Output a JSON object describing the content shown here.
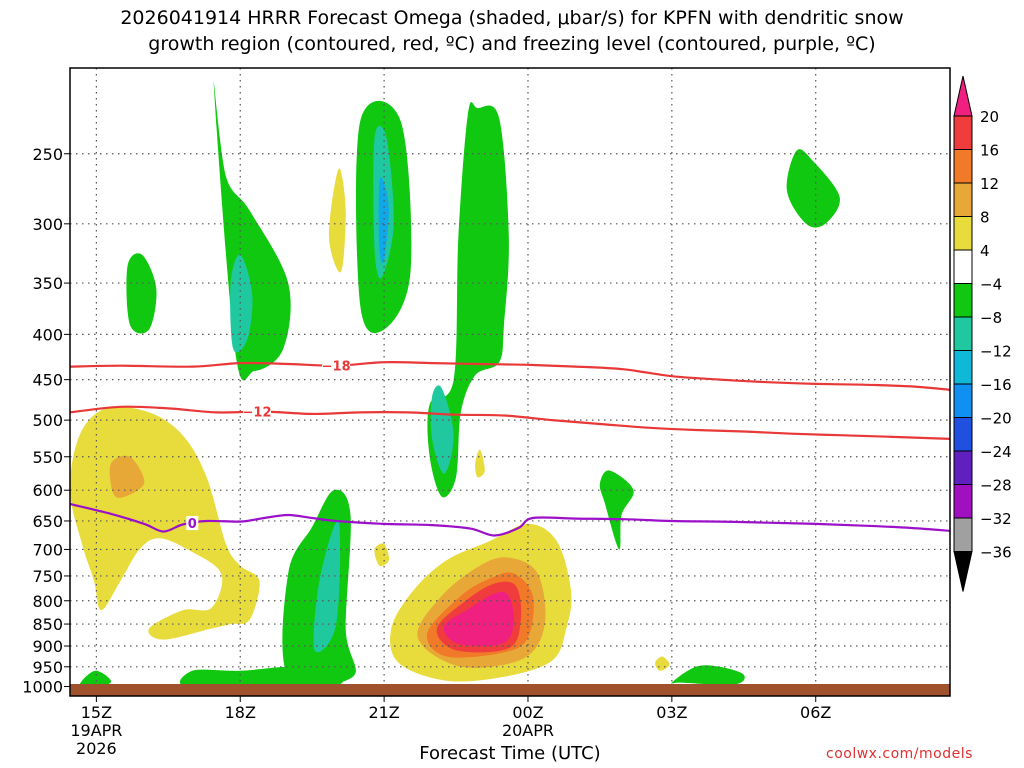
{
  "title_line1": "2026041914 HRRR Forecast Omega (shaded, μbar/s) for KPFN with dendritic snow",
  "title_line2": "growth region (contoured, red, ºC) and freezing level (contoured, purple, ºC)",
  "credit": "coolwx.com/models",
  "chart_data": {
    "type": "heatmap",
    "xlabel": "Forecast Time (UTC)",
    "ylabel": "",
    "x_hours_range": [
      14.45,
      32.8
    ],
    "ylim_hpa": [
      1025,
      200
    ],
    "y_scale": "log-pressure",
    "grid": "dotted",
    "x_ticks": [
      {
        "h": 15,
        "label": "15Z",
        "date": "19APR",
        "year": "2026"
      },
      {
        "h": 18,
        "label": "18Z"
      },
      {
        "h": 21,
        "label": "21Z"
      },
      {
        "h": 24,
        "label": "00Z",
        "date": "20APR"
      },
      {
        "h": 27,
        "label": "03Z"
      },
      {
        "h": 30,
        "label": "06Z"
      }
    ],
    "y_ticks": [
      250,
      300,
      350,
      400,
      450,
      500,
      550,
      600,
      650,
      700,
      750,
      800,
      850,
      900,
      950,
      1000
    ],
    "colorbar": {
      "labels": [
        "20",
        "16",
        "12",
        "8",
        "4",
        "-4",
        "-8",
        "-12",
        "-16",
        "-20",
        "-24",
        "-28",
        "-32",
        "-36"
      ],
      "colors": [
        "#f02080",
        "#f03c3c",
        "#f07a28",
        "#e8a838",
        "#e8dc3c",
        "#ffffff",
        "#10c810",
        "#20c8a0",
        "#10b8d8",
        "#1090f0",
        "#2050e0",
        "#6020c0",
        "#a010c0",
        "#a0a0a0",
        "#000000"
      ]
    },
    "series": [
      {
        "name": "-18",
        "color": "#e83838",
        "points": [
          [
            14.45,
            435
          ],
          [
            15.5,
            434
          ],
          [
            17,
            435
          ],
          [
            18,
            431
          ],
          [
            19,
            432
          ],
          [
            20,
            434
          ],
          [
            21,
            430
          ],
          [
            22,
            431
          ],
          [
            23,
            432
          ],
          [
            24,
            433
          ],
          [
            25,
            435
          ],
          [
            26,
            438
          ],
          [
            27,
            446
          ],
          [
            28,
            450
          ],
          [
            29,
            453
          ],
          [
            30,
            455
          ],
          [
            31,
            456
          ],
          [
            32,
            458
          ],
          [
            32.8,
            462
          ]
        ]
      },
      {
        "name": "-12",
        "color": "#e83838",
        "points": [
          [
            14.45,
            490
          ],
          [
            15.5,
            483
          ],
          [
            16.5,
            485
          ],
          [
            17.5,
            490
          ],
          [
            18.5,
            489
          ],
          [
            19.5,
            492
          ],
          [
            20.5,
            490
          ],
          [
            21.5,
            490
          ],
          [
            22.5,
            493
          ],
          [
            23.5,
            494
          ],
          [
            24.5,
            500
          ],
          [
            25.5,
            505
          ],
          [
            26.5,
            510
          ],
          [
            27.5,
            513
          ],
          [
            28.5,
            515
          ],
          [
            29.5,
            518
          ],
          [
            30.5,
            520
          ],
          [
            31.5,
            522
          ],
          [
            32.8,
            525
          ]
        ]
      },
      {
        "name": "0",
        "color": "#9b10c8",
        "points": [
          [
            14.45,
            622
          ],
          [
            15.3,
            638
          ],
          [
            16,
            655
          ],
          [
            16.4,
            668
          ],
          [
            16.8,
            656
          ],
          [
            17.3,
            650
          ],
          [
            18,
            651
          ],
          [
            18.5,
            645
          ],
          [
            19,
            640
          ],
          [
            19.5,
            645
          ],
          [
            20,
            650
          ],
          [
            21,
            655
          ],
          [
            22,
            657
          ],
          [
            22.8,
            663
          ],
          [
            23.3,
            675
          ],
          [
            23.8,
            662
          ],
          [
            24.1,
            645
          ],
          [
            25,
            646
          ],
          [
            26,
            647
          ],
          [
            27,
            650
          ],
          [
            28,
            651
          ],
          [
            29,
            653
          ],
          [
            30,
            655
          ],
          [
            31,
            658
          ],
          [
            32,
            662
          ],
          [
            32.8,
            667
          ]
        ]
      }
    ],
    "omega_features": [
      {
        "kind": "up",
        "level": -8,
        "points": [
          [
            17.9,
            420
          ],
          [
            17.45,
            210
          ],
          [
            17.7,
            265
          ],
          [
            18.2,
            290
          ],
          [
            19.0,
            350
          ],
          [
            18.9,
            415
          ],
          [
            18.3,
            440
          ]
        ]
      },
      {
        "kind": "up",
        "level": -12,
        "points": [
          [
            17.85,
            415
          ],
          [
            17.8,
            350
          ],
          [
            18.0,
            325
          ],
          [
            18.25,
            360
          ],
          [
            18.15,
            405
          ]
        ]
      },
      {
        "kind": "up",
        "level": -8,
        "points": [
          [
            15.7,
            390
          ],
          [
            15.65,
            335
          ],
          [
            15.95,
            325
          ],
          [
            16.25,
            355
          ],
          [
            16.1,
            395
          ]
        ]
      },
      {
        "kind": "up",
        "level": -8,
        "points": [
          [
            20.5,
            230
          ],
          [
            20.5,
            370
          ],
          [
            21.0,
            395
          ],
          [
            21.55,
            340
          ],
          [
            21.35,
            230
          ]
        ]
      },
      {
        "kind": "up",
        "level": -12,
        "points": [
          [
            20.8,
            240
          ],
          [
            20.8,
            320
          ],
          [
            20.95,
            345
          ],
          [
            21.2,
            300
          ],
          [
            21.05,
            240
          ]
        ]
      },
      {
        "kind": "up",
        "level": -16,
        "points": [
          [
            20.9,
            270
          ],
          [
            20.9,
            320
          ],
          [
            21.0,
            330
          ],
          [
            21.1,
            290
          ],
          [
            21.0,
            270
          ]
        ]
      },
      {
        "kind": "up",
        "level": -8,
        "points": [
          [
            22.45,
            450
          ],
          [
            22.55,
            310
          ],
          [
            22.75,
            225
          ],
          [
            22.95,
            222
          ],
          [
            23.4,
            228
          ],
          [
            23.6,
            310
          ],
          [
            23.5,
            390
          ],
          [
            23.4,
            430
          ],
          [
            22.9,
            445
          ],
          [
            22.6,
            490
          ],
          [
            22.5,
            580
          ],
          [
            22.2,
            610
          ],
          [
            21.95,
            550
          ],
          [
            21.95,
            480
          ]
        ]
      },
      {
        "kind": "up",
        "level": -12,
        "points": [
          [
            22.0,
            470
          ],
          [
            22.2,
            460
          ],
          [
            22.45,
            520
          ],
          [
            22.25,
            575
          ],
          [
            22.0,
            525
          ]
        ]
      },
      {
        "kind": "up",
        "level": -8,
        "points": [
          [
            19.0,
            975
          ],
          [
            19.0,
            745
          ],
          [
            19.5,
            660
          ],
          [
            19.95,
            600
          ],
          [
            20.3,
            640
          ],
          [
            20.2,
            860
          ],
          [
            20.35,
            975
          ]
        ]
      },
      {
        "kind": "up",
        "level": -12,
        "points": [
          [
            19.55,
            910
          ],
          [
            19.65,
            760
          ],
          [
            20.05,
            650
          ],
          [
            20.0,
            850
          ]
        ]
      },
      {
        "kind": "up",
        "level": -8,
        "points": [
          [
            29.4,
            275
          ],
          [
            29.6,
            248
          ],
          [
            29.95,
            255
          ],
          [
            30.5,
            280
          ],
          [
            30.2,
            300
          ],
          [
            29.8,
            300
          ]
        ]
      },
      {
        "kind": "up",
        "level": -8,
        "points": [
          [
            25.5,
            590
          ],
          [
            25.7,
            570
          ],
          [
            26.2,
            600
          ],
          [
            25.95,
            640
          ],
          [
            25.9,
            700
          ],
          [
            25.6,
            620
          ]
        ]
      },
      {
        "kind": "up",
        "level": -8,
        "points": [
          [
            17.0,
            960
          ],
          [
            18.0,
            960
          ],
          [
            19.0,
            950
          ],
          [
            19.9,
            955
          ],
          [
            19.9,
            1000
          ],
          [
            17.0,
            1005
          ]
        ]
      },
      {
        "kind": "up",
        "level": -8,
        "points": [
          [
            14.7,
            985
          ],
          [
            15.0,
            960
          ],
          [
            15.3,
            990
          ],
          [
            14.7,
            1005
          ]
        ]
      },
      {
        "kind": "up",
        "level": -8,
        "points": [
          [
            27.0,
            990
          ],
          [
            27.5,
            950
          ],
          [
            28.0,
            950
          ],
          [
            28.5,
            970
          ],
          [
            28.3,
            995
          ],
          [
            27.2,
            990
          ]
        ]
      },
      {
        "kind": "down",
        "level": 4,
        "points": [
          [
            14.45,
            600
          ],
          [
            14.65,
            520
          ],
          [
            15.2,
            485
          ],
          [
            16.1,
            490
          ],
          [
            16.8,
            520
          ],
          [
            17.3,
            580
          ],
          [
            17.7,
            690
          ],
          [
            18.0,
            730
          ],
          [
            18.4,
            760
          ],
          [
            18.2,
            840
          ],
          [
            17.8,
            850
          ],
          [
            17.4,
            860
          ],
          [
            16.4,
            885
          ],
          [
            16.1,
            860
          ],
          [
            16.8,
            820
          ],
          [
            17.4,
            815
          ],
          [
            17.6,
            745
          ],
          [
            16.9,
            700
          ],
          [
            16.3,
            680
          ],
          [
            15.9,
            700
          ],
          [
            15.5,
            760
          ],
          [
            15.1,
            820
          ],
          [
            14.95,
            760
          ],
          [
            14.7,
            690
          ]
        ]
      },
      {
        "kind": "down",
        "level": 8,
        "points": [
          [
            15.3,
            560
          ],
          [
            15.7,
            550
          ],
          [
            16.0,
            588
          ],
          [
            15.6,
            610
          ],
          [
            15.35,
            605
          ]
        ]
      },
      {
        "kind": "down",
        "level": 4,
        "points": [
          [
            19.85,
            310
          ],
          [
            20.05,
            260
          ],
          [
            20.2,
            290
          ],
          [
            20.1,
            340
          ]
        ]
      },
      {
        "kind": "down",
        "level": 4,
        "points": [
          [
            21.3,
            940
          ],
          [
            21.15,
            860
          ],
          [
            21.6,
            780
          ],
          [
            22.3,
            720
          ],
          [
            23.2,
            685
          ],
          [
            24.0,
            655
          ],
          [
            24.6,
            685
          ],
          [
            24.9,
            780
          ],
          [
            24.8,
            860
          ],
          [
            24.5,
            935
          ],
          [
            23.5,
            975
          ],
          [
            22.3,
            985
          ]
        ]
      },
      {
        "kind": "down",
        "level": 8,
        "points": [
          [
            21.7,
            880
          ],
          [
            22.2,
            790
          ],
          [
            23.0,
            730
          ],
          [
            23.6,
            715
          ],
          [
            24.2,
            745
          ],
          [
            24.35,
            850
          ],
          [
            23.9,
            930
          ],
          [
            22.6,
            950
          ]
        ]
      },
      {
        "kind": "down",
        "level": 12,
        "points": [
          [
            21.9,
            870
          ],
          [
            22.6,
            790
          ],
          [
            23.2,
            755
          ],
          [
            23.7,
            745
          ],
          [
            24.1,
            790
          ],
          [
            24.0,
            880
          ],
          [
            23.5,
            915
          ],
          [
            22.3,
            925
          ]
        ]
      },
      {
        "kind": "down",
        "level": 16,
        "points": [
          [
            22.1,
            860
          ],
          [
            22.7,
            800
          ],
          [
            23.3,
            765
          ],
          [
            23.75,
            770
          ],
          [
            23.85,
            840
          ],
          [
            23.6,
            905
          ],
          [
            22.5,
            910
          ]
        ]
      },
      {
        "kind": "down",
        "level": 20,
        "points": [
          [
            22.25,
            855
          ],
          [
            22.8,
            815
          ],
          [
            23.3,
            785
          ],
          [
            23.6,
            790
          ],
          [
            23.7,
            850
          ],
          [
            23.45,
            895
          ],
          [
            22.55,
            895
          ]
        ]
      },
      {
        "kind": "down",
        "level": 4,
        "points": [
          [
            20.8,
            700
          ],
          [
            21.0,
            690
          ],
          [
            21.1,
            720
          ],
          [
            20.9,
            730
          ]
        ]
      },
      {
        "kind": "down",
        "level": 4,
        "points": [
          [
            22.9,
            560
          ],
          [
            23.0,
            540
          ],
          [
            23.1,
            570
          ],
          [
            22.95,
            580
          ]
        ]
      },
      {
        "kind": "down",
        "level": 4,
        "points": [
          [
            26.65,
            940
          ],
          [
            26.8,
            925
          ],
          [
            26.95,
            945
          ],
          [
            26.75,
            960
          ]
        ]
      }
    ]
  }
}
